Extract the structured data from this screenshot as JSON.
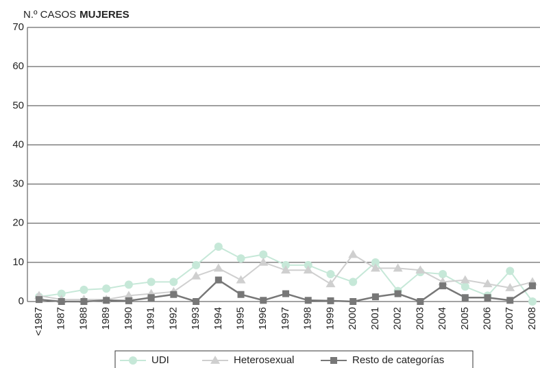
{
  "chart_data": {
    "type": "line",
    "title": "N.º CASOS",
    "title_emphasis": "MUJERES",
    "categories": [
      "<1987",
      "1987",
      "1988",
      "1989",
      "1990",
      "1991",
      "1992",
      "1993",
      "1994",
      "1995",
      "1996",
      "1997",
      "1998",
      "1999",
      "2000",
      "2001",
      "2002",
      "2003",
      "2004",
      "2005",
      "2006",
      "2007",
      "2008"
    ],
    "series": [
      {
        "name": "UDI",
        "color": "#c6e8d8",
        "marker": "circle",
        "values": [
          1.2,
          2,
          3,
          3.3,
          4.3,
          5,
          5,
          9.3,
          14,
          11,
          12,
          9.3,
          9.3,
          7,
          5,
          10,
          2.7,
          7.5,
          7,
          3.8,
          1.5,
          7.8,
          0
        ]
      },
      {
        "name": "Heterosexual",
        "color": "#cfcfcf",
        "marker": "triangle",
        "values": [
          1.5,
          0.5,
          0.5,
          0.5,
          1.5,
          2,
          2.5,
          6.5,
          8.5,
          5.5,
          10,
          8,
          8,
          4.5,
          12,
          8.5,
          8.5,
          8,
          5,
          5.5,
          4.5,
          3.5,
          5
        ]
      },
      {
        "name": "Resto de categorías",
        "color": "#777777",
        "marker": "square",
        "values": [
          0.5,
          0,
          0,
          0.3,
          0.2,
          1,
          1.8,
          0,
          5.5,
          1.8,
          0.3,
          2,
          0.3,
          0.2,
          0,
          1.2,
          2,
          0,
          4,
          1,
          1,
          0.3,
          4
        ]
      }
    ],
    "ylim": [
      0,
      70
    ],
    "yticks": [
      0,
      10,
      20,
      30,
      40,
      50,
      60,
      70
    ],
    "grid": true
  }
}
